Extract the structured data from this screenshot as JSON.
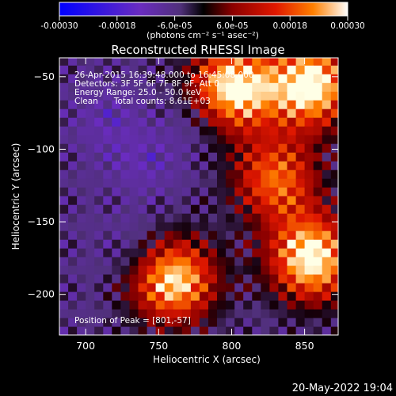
{
  "colorbar": {
    "tick_labels": [
      "-0.00030",
      "-0.00018",
      "-6.0e-05",
      "6.0e-05",
      "0.00018",
      "0.00030"
    ],
    "tick_values": [
      -0.0003,
      -0.00018,
      -6e-05,
      6e-05,
      0.00018,
      0.0003
    ],
    "range": [
      -0.0003,
      0.0003
    ],
    "unit_label": "(photons cm⁻² s⁻¹ asec⁻²)",
    "colors": [
      "#0000ff",
      "#5a1fd0",
      "#7a3ab0",
      "#000000",
      "#8b0000",
      "#d01000",
      "#ff6000",
      "#ffc000",
      "#ffffff"
    ]
  },
  "title": "Reconstructed RHESSI Image",
  "annotations": {
    "line1": "26-Apr-2015 16:39:48.000 to 16:45:08.000",
    "line2": "Detectors: 3F 5F 6F 7F 8F 9F, Att 0",
    "line3": "Energy Range: 25.0 - 50.0 keV",
    "line4": "Clean      Total counts: 8.61E+03",
    "peak": "Position of Peak = [801,-57]"
  },
  "footer_date": "20-May-2022 19:04",
  "chart_data": {
    "type": "heatmap",
    "title": "Reconstructed RHESSI Image",
    "xlabel": "Heliocentric X (arcsec)",
    "ylabel": "Heliocentric Y (arcsec)",
    "xlim": [
      682,
      873
    ],
    "ylim": [
      -228,
      -37
    ],
    "x_ticks": [
      700,
      750,
      800,
      850
    ],
    "y_ticks": [
      -50,
      -100,
      -150,
      -200
    ],
    "x_tick_labels": [
      "700",
      "750",
      "800",
      "850"
    ],
    "y_tick_labels": [
      "−50",
      "−100",
      "−150",
      "−200"
    ],
    "peak_position": [
      801,
      -57
    ],
    "colorscale_range": [
      -0.0003,
      0.0003
    ],
    "bright_regions": [
      {
        "x": 760,
        "y": -190,
        "value": 0.00028
      },
      {
        "x": 855,
        "y": -175,
        "value": 0.0003
      },
      {
        "x": 855,
        "y": -55,
        "value": 0.0003
      },
      {
        "x": 801,
        "y": -57,
        "value": 0.0003
      },
      {
        "x": 830,
        "y": -120,
        "value": 0.00018
      }
    ],
    "dim_regions": [
      {
        "x": 715,
        "y": -80,
        "value": -0.00012
      },
      {
        "x": 740,
        "y": -110,
        "value": -0.00012
      },
      {
        "x": 735,
        "y": -170,
        "value": -0.00012
      },
      {
        "x": 775,
        "y": -80,
        "value": -0.0001
      }
    ]
  }
}
